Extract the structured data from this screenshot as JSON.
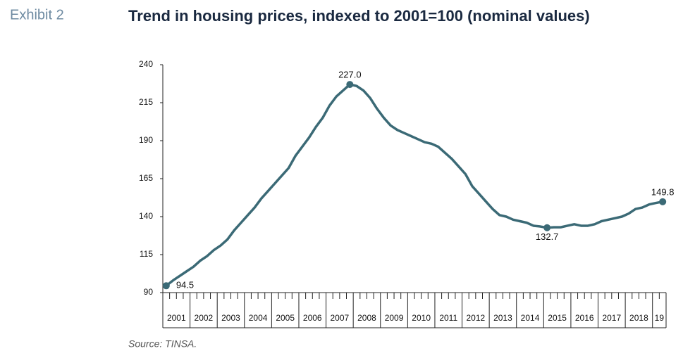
{
  "exhibit": "Exhibit 2",
  "chart_data": {
    "type": "line",
    "title": "Trend in housing prices, indexed to 2001=100 (nominal values)",
    "source": "Source: TINSA.",
    "categories": [
      "2001",
      null,
      null,
      null,
      "2002",
      null,
      null,
      null,
      "2003",
      null,
      null,
      null,
      "2004",
      null,
      null,
      null,
      "2005",
      null,
      null,
      null,
      "2006",
      null,
      null,
      null,
      "2007",
      null,
      null,
      null,
      "2008",
      null,
      null,
      null,
      "2009",
      null,
      null,
      null,
      "2010",
      null,
      null,
      null,
      "2011",
      null,
      null,
      null,
      "2012",
      null,
      null,
      null,
      "2013",
      null,
      null,
      null,
      "2014",
      null,
      null,
      null,
      "2015",
      null,
      null,
      null,
      "2016",
      null,
      null,
      null,
      "2017",
      null,
      null,
      null,
      "2018",
      null,
      null,
      null,
      "19",
      null
    ],
    "series": [
      {
        "color": "#3b6a76",
        "values": [
          94.5,
          98,
          101,
          104,
          107,
          111,
          114,
          118,
          121,
          125,
          131,
          136,
          141,
          146,
          152,
          157,
          162,
          167,
          172,
          180,
          186,
          192,
          199,
          205,
          213,
          219,
          223,
          227.0,
          226,
          223,
          218,
          211,
          205,
          200,
          197,
          195,
          193,
          191,
          189,
          188,
          186,
          182,
          178,
          173,
          168,
          160,
          155,
          150,
          145,
          141,
          140,
          138,
          137,
          136,
          134,
          133.5,
          132.7,
          133,
          133,
          134,
          135,
          134,
          134,
          135,
          137,
          138,
          139,
          140,
          142,
          145,
          146,
          148,
          149,
          149.8
        ],
        "value_labels": [
          "94.5",
          null,
          null,
          null,
          null,
          null,
          null,
          null,
          null,
          null,
          null,
          null,
          null,
          null,
          null,
          null,
          null,
          null,
          null,
          null,
          null,
          null,
          null,
          null,
          null,
          null,
          null,
          "227.0",
          null,
          null,
          null,
          null,
          null,
          null,
          null,
          null,
          null,
          null,
          null,
          null,
          null,
          null,
          null,
          null,
          null,
          null,
          null,
          null,
          null,
          null,
          null,
          null,
          null,
          null,
          null,
          null,
          "132.7",
          null,
          null,
          null,
          null,
          null,
          null,
          null,
          null,
          null,
          null,
          null,
          null,
          null,
          null,
          null,
          null,
          "149.8"
        ]
      }
    ],
    "ylim": [
      90,
      240
    ],
    "yticks": [
      90,
      115,
      140,
      165,
      190,
      215,
      240
    ]
  }
}
